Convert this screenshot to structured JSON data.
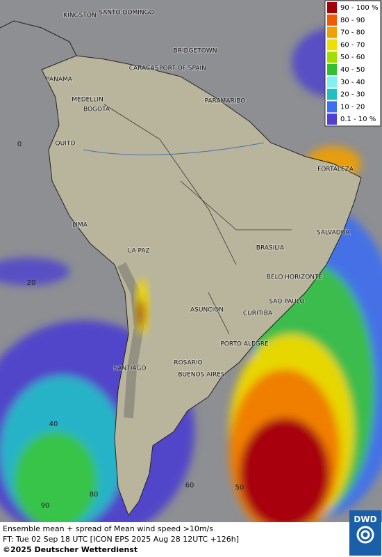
{
  "legend": {
    "items": [
      {
        "label": "90 - 100 %",
        "color": "#a3000a"
      },
      {
        "label": "80 - 90",
        "color": "#f05a00"
      },
      {
        "label": "70 - 80",
        "color": "#f0a000"
      },
      {
        "label": "60 - 70",
        "color": "#f0e000"
      },
      {
        "label": "50 - 60",
        "color": "#a0e000"
      },
      {
        "label": "40 - 50",
        "color": "#30c030"
      },
      {
        "label": "30 - 40",
        "color": "#80f0f0"
      },
      {
        "label": "20 - 30",
        "color": "#20c0c0"
      },
      {
        "label": "10 - 20",
        "color": "#3f6ff0"
      },
      {
        "label": "0.1 - 10 %",
        "color": "#5040d0"
      }
    ]
  },
  "cities": [
    "KINGSTON",
    "SANTO DOMINGO",
    "BRIDGETOWN",
    "CARACAS",
    "PORT OF SPAIN",
    "PANAMA",
    "MEDELLIN",
    "BOGOTA",
    "PARAMARIBO",
    "QUITO",
    "FORTALEZA",
    "LIMA",
    "SALVADOR",
    "BRASILIA",
    "LA PAZ",
    "BELO HORIZONTE",
    "SAO PAULO",
    "ASUNCION",
    "CURITIBA",
    "PORTO ALEGRE",
    "ROSARIO",
    "SANTIAGO",
    "BUENOS AIRES"
  ],
  "grid_labels": [
    "0",
    "20",
    "40",
    "90",
    "80",
    "60",
    "50"
  ],
  "caption": [
    "Ensemble mean + spread of Mean wind speed >10m/s",
    "FT: Tue 02 Sep 18 UTC [ICON EPS 2025 Aug 28 12UTC +126h]"
  ],
  "copyright": "©2025 Deutscher Wetterdienst",
  "logo": "DWD"
}
